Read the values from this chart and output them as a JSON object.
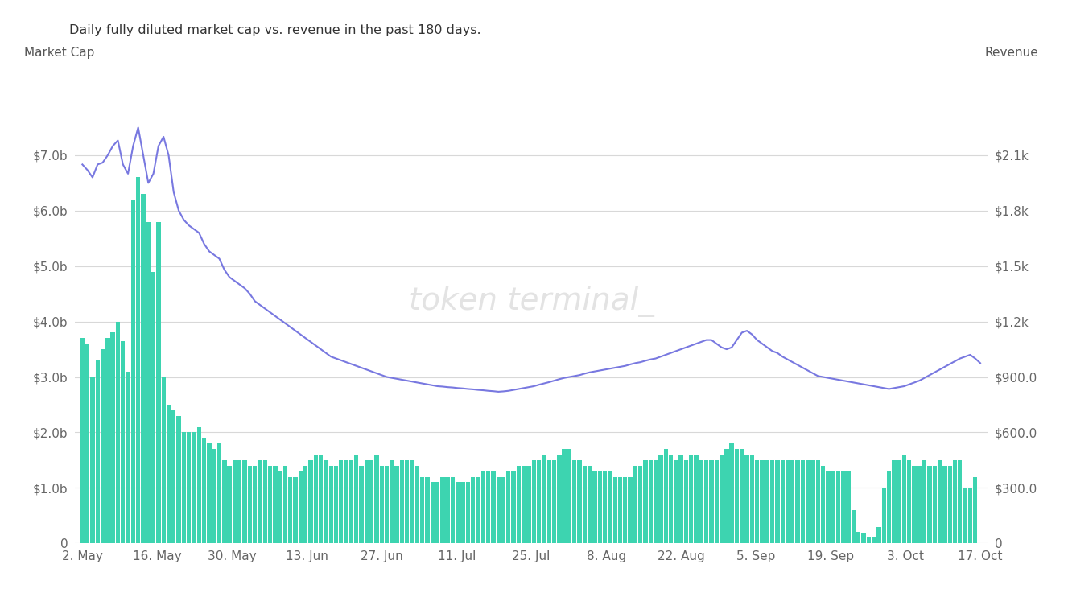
{
  "title": "Daily fully diluted market cap vs. revenue in the past 180 days.",
  "left_label": "Market Cap",
  "right_label": "Revenue",
  "watermark": "token terminal_",
  "background_color": "#ffffff",
  "bar_color": "#3dd4b0",
  "line_color": "#7878e0",
  "x_tick_labels": [
    "2. May",
    "16. May",
    "30. May",
    "13. Jun",
    "27. Jun",
    "11. Jul",
    "25. Jul",
    "8. Aug",
    "22. Aug",
    "5. Sep",
    "19. Sep",
    "3. Oct",
    "17. Oct"
  ],
  "left_ytick_labels": [
    "0",
    "$1.0b",
    "$2.0b",
    "$3.0b",
    "$4.0b",
    "$5.0b",
    "$6.0b",
    "$7.0b"
  ],
  "left_ytick_vals": [
    0,
    1.0,
    2.0,
    3.0,
    4.0,
    5.0,
    6.0,
    7.0
  ],
  "right_ytick_labels": [
    "0",
    "$300.0",
    "$600.0",
    "$900.0",
    "$1.2k",
    "$1.5k",
    "$1.8k",
    "$2.1k"
  ],
  "right_ytick_vals": [
    0,
    300,
    600,
    900,
    1200,
    1500,
    1800,
    2100
  ],
  "ylim_left": [
    0,
    8.4
  ],
  "ylim_right": [
    0,
    2520
  ],
  "bar_values": [
    3.7,
    3.6,
    3.0,
    3.3,
    3.5,
    3.7,
    3.8,
    4.0,
    3.65,
    3.1,
    6.2,
    6.6,
    6.3,
    5.8,
    4.9,
    5.8,
    3.0,
    2.5,
    2.4,
    2.3,
    2.0,
    2.0,
    2.0,
    2.1,
    1.9,
    1.8,
    1.7,
    1.8,
    1.5,
    1.4,
    1.5,
    1.5,
    1.5,
    1.4,
    1.4,
    1.5,
    1.5,
    1.4,
    1.4,
    1.3,
    1.4,
    1.2,
    1.2,
    1.3,
    1.4,
    1.5,
    1.6,
    1.6,
    1.5,
    1.4,
    1.4,
    1.5,
    1.5,
    1.5,
    1.6,
    1.4,
    1.5,
    1.5,
    1.6,
    1.4,
    1.4,
    1.5,
    1.4,
    1.5,
    1.5,
    1.5,
    1.4,
    1.2,
    1.2,
    1.1,
    1.1,
    1.2,
    1.2,
    1.2,
    1.1,
    1.1,
    1.1,
    1.2,
    1.2,
    1.3,
    1.3,
    1.3,
    1.2,
    1.2,
    1.3,
    1.3,
    1.4,
    1.4,
    1.4,
    1.5,
    1.5,
    1.6,
    1.5,
    1.5,
    1.6,
    1.7,
    1.7,
    1.5,
    1.5,
    1.4,
    1.4,
    1.3,
    1.3,
    1.3,
    1.3,
    1.2,
    1.2,
    1.2,
    1.2,
    1.4,
    1.4,
    1.5,
    1.5,
    1.5,
    1.6,
    1.7,
    1.6,
    1.5,
    1.6,
    1.5,
    1.6,
    1.6,
    1.5,
    1.5,
    1.5,
    1.5,
    1.6,
    1.7,
    1.8,
    1.7,
    1.7,
    1.6,
    1.6,
    1.5,
    1.5,
    1.5,
    1.5,
    1.5,
    1.5,
    1.5,
    1.5,
    1.5,
    1.5,
    1.5,
    1.5,
    1.5,
    1.4,
    1.3,
    1.3,
    1.3,
    1.3,
    1.3,
    0.6,
    0.2,
    0.18,
    0.12,
    0.1,
    0.3,
    1.0,
    1.3,
    1.5,
    1.5,
    1.6,
    1.5,
    1.4,
    1.4,
    1.5,
    1.4,
    1.4,
    1.5,
    1.4,
    1.4,
    1.5,
    1.5,
    1.0,
    1.0,
    1.2,
    0.0
  ],
  "line_values": [
    2050,
    2020,
    1980,
    2050,
    2060,
    2100,
    2150,
    2180,
    2050,
    2000,
    2150,
    2250,
    2100,
    1950,
    2000,
    2150,
    2200,
    2100,
    1900,
    1800,
    1750,
    1720,
    1700,
    1680,
    1620,
    1580,
    1560,
    1540,
    1480,
    1440,
    1420,
    1400,
    1380,
    1350,
    1310,
    1290,
    1270,
    1250,
    1230,
    1210,
    1190,
    1170,
    1150,
    1130,
    1110,
    1090,
    1070,
    1050,
    1030,
    1010,
    1000,
    990,
    980,
    970,
    960,
    950,
    940,
    930,
    920,
    910,
    900,
    895,
    890,
    885,
    880,
    875,
    870,
    865,
    860,
    855,
    850,
    848,
    845,
    843,
    840,
    838,
    835,
    833,
    830,
    828,
    825,
    823,
    820,
    822,
    825,
    830,
    835,
    840,
    845,
    850,
    858,
    865,
    872,
    880,
    888,
    895,
    900,
    905,
    910,
    918,
    925,
    930,
    935,
    940,
    945,
    950,
    955,
    960,
    968,
    975,
    980,
    988,
    995,
    1000,
    1010,
    1020,
    1030,
    1040,
    1050,
    1060,
    1070,
    1080,
    1090,
    1100,
    1100,
    1080,
    1060,
    1050,
    1060,
    1100,
    1140,
    1150,
    1130,
    1100,
    1080,
    1060,
    1040,
    1030,
    1010,
    995,
    980,
    965,
    950,
    935,
    920,
    905,
    900,
    895,
    890,
    885,
    880,
    875,
    870,
    865,
    860,
    855,
    850,
    845,
    840,
    835,
    840,
    845,
    850,
    860,
    870,
    880,
    895,
    910,
    925,
    940,
    955,
    970,
    985,
    1000,
    1010,
    1020,
    1000,
    975,
    960,
    950,
    960
  ]
}
